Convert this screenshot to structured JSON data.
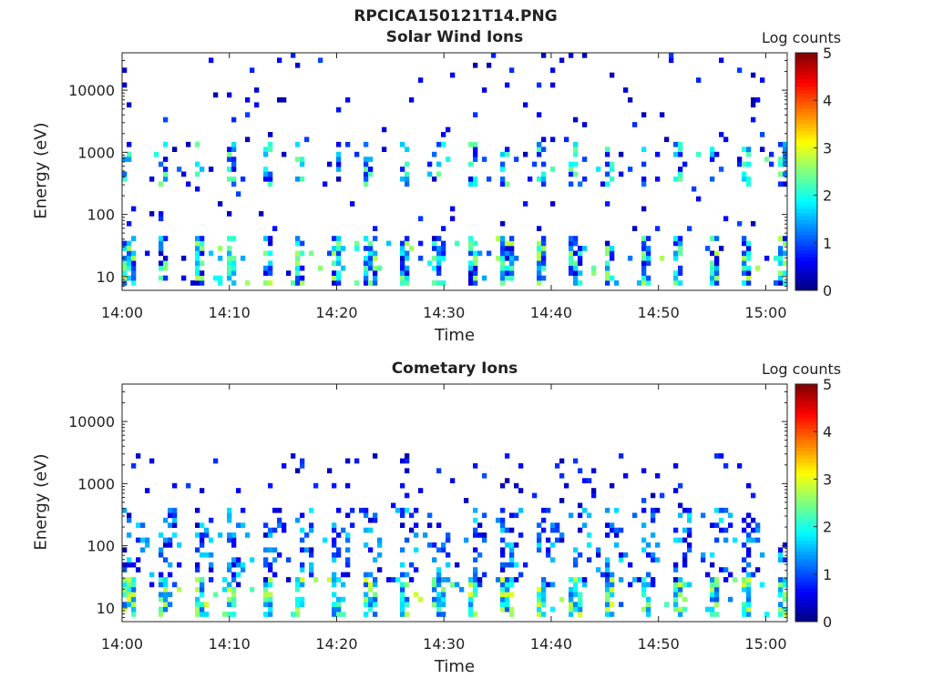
{
  "figure": {
    "title": "RPCICA150121T14.PNG"
  },
  "colorbar": {
    "label": "Log counts",
    "range": [
      0,
      5
    ],
    "ticks": [
      "0",
      "1",
      "2",
      "3",
      "4",
      "5"
    ],
    "colormap": "jet"
  },
  "chart_data": [
    {
      "type": "heatmap",
      "title": "Solar Wind Ions",
      "xlabel": "Time",
      "ylabel": "Energy (eV)",
      "x_ticks": [
        "14:00",
        "14:10",
        "14:20",
        "14:30",
        "14:40",
        "14:50",
        "15:00"
      ],
      "x_range": [
        "14:00",
        "15:02"
      ],
      "y_ticks": [
        "10",
        "100",
        "1000",
        "10000"
      ],
      "y_scale": "log",
      "y_range": [
        6,
        40000
      ],
      "z_range": [
        0,
        5
      ],
      "sweep_period_min": 3.2,
      "features": [
        {
          "energy_band_eV": [
            7,
            45
          ],
          "log_counts": [
            0.3,
            2.8
          ]
        },
        {
          "energy_band_eV": [
            300,
            1500
          ],
          "log_counts": [
            0.5,
            2.5
          ]
        },
        {
          "energy_band_eV": [
            50,
            40000
          ],
          "log_counts": [
            0.2,
            1.0
          ]
        }
      ]
    },
    {
      "type": "heatmap",
      "title": "Cometary Ions",
      "xlabel": "Time",
      "ylabel": "Energy (eV)",
      "x_ticks": [
        "14:00",
        "14:10",
        "14:20",
        "14:30",
        "14:40",
        "14:50",
        "15:00"
      ],
      "x_range": [
        "14:00",
        "15:02"
      ],
      "y_ticks": [
        "10",
        "100",
        "1000",
        "10000"
      ],
      "y_scale": "log",
      "y_range": [
        6,
        40000
      ],
      "z_range": [
        0,
        5
      ],
      "sweep_period_min": 3.2,
      "features": [
        {
          "energy_band_eV": [
            7,
            30
          ],
          "log_counts": [
            1.0,
            3.0
          ]
        },
        {
          "energy_band_eV": [
            20,
            400
          ],
          "log_counts": [
            0.3,
            1.8
          ]
        },
        {
          "energy_band_eV": [
            400,
            3000
          ],
          "log_counts": [
            0.2,
            1.0
          ]
        }
      ]
    }
  ]
}
